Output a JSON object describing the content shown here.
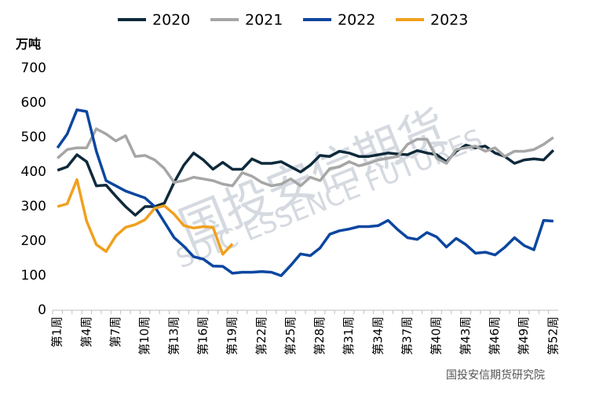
{
  "chart_data": {
    "type": "line",
    "unit_label": "万吨",
    "watermark": "国投安信期货",
    "watermark_en": "SDIC ESSENCE FUTURES",
    "source": "国投安信期货研究院",
    "categories": [
      "第1周",
      null,
      null,
      "第4周",
      null,
      null,
      "第7周",
      null,
      null,
      "第10周",
      null,
      null,
      "第13周",
      null,
      null,
      "第16周",
      null,
      null,
      "第19周",
      null,
      null,
      "第22周",
      null,
      null,
      "第25周",
      null,
      null,
      "第28周",
      null,
      null,
      "第31周",
      null,
      null,
      "第34周",
      null,
      null,
      "第37周",
      null,
      null,
      "第40周",
      null,
      null,
      "第43周",
      null,
      null,
      "第46周",
      null,
      null,
      "第49周",
      null,
      null,
      "第52周"
    ],
    "series": [
      {
        "name": "2020",
        "color": "#0e2a3b",
        "values": [
          405,
          415,
          450,
          430,
          360,
          362,
          330,
          300,
          275,
          300,
          300,
          310,
          370,
          420,
          455,
          435,
          408,
          428,
          408,
          408,
          438,
          425,
          425,
          430,
          415,
          400,
          420,
          448,
          445,
          460,
          455,
          445,
          445,
          450,
          455,
          452,
          450,
          462,
          455,
          450,
          430,
          460,
          478,
          470,
          475,
          455,
          445,
          425,
          435,
          438,
          435,
          463
        ]
      },
      {
        "name": "2021",
        "color": "#a6a6a6",
        "values": [
          440,
          465,
          470,
          470,
          525,
          510,
          490,
          505,
          445,
          448,
          435,
          410,
          370,
          375,
          385,
          380,
          375,
          365,
          360,
          398,
          388,
          370,
          360,
          365,
          380,
          360,
          385,
          375,
          410,
          415,
          430,
          418,
          425,
          435,
          440,
          445,
          480,
          495,
          495,
          440,
          425,
          465,
          470,
          475,
          460,
          470,
          445,
          460,
          460,
          465,
          480,
          500
        ]
      },
      {
        "name": "2022",
        "color": "#0b46a0",
        "values": [
          470,
          510,
          580,
          575,
          460,
          375,
          360,
          345,
          335,
          325,
          300,
          255,
          210,
          185,
          155,
          148,
          128,
          127,
          107,
          110,
          110,
          112,
          110,
          100,
          130,
          163,
          158,
          180,
          220,
          230,
          235,
          242,
          242,
          245,
          260,
          233,
          210,
          205,
          225,
          212,
          183,
          208,
          190,
          165,
          168,
          160,
          182,
          210,
          187,
          175,
          260,
          258
        ]
      },
      {
        "name": "2023",
        "color": "#f0a01e",
        "values": [
          300,
          308,
          378,
          258,
          190,
          170,
          215,
          240,
          248,
          262,
          295,
          302,
          278,
          245,
          238,
          242,
          240,
          162,
          192,
          null,
          null,
          null,
          null,
          null,
          null,
          null,
          null,
          null,
          null,
          null,
          null,
          null,
          null,
          null,
          null,
          null,
          null,
          null,
          null,
          null,
          null,
          null,
          null,
          null,
          null,
          null,
          null,
          null,
          null,
          null,
          null,
          null
        ]
      }
    ],
    "ylim": [
      0,
      700
    ],
    "yticks": [
      0,
      100,
      200,
      300,
      400,
      500,
      600,
      700
    ],
    "legend": "top"
  }
}
